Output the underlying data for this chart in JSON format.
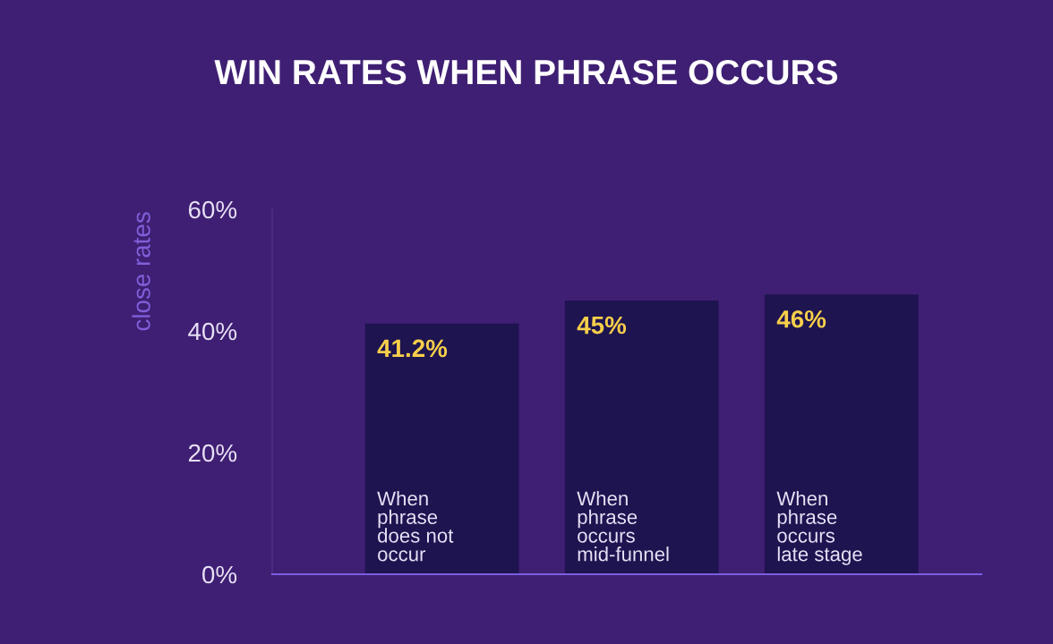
{
  "chart_data": {
    "type": "bar",
    "title": "WIN RATES WHEN PHRASE OCCURS",
    "ylabel": "close rates",
    "categories": [
      "When\nphrase\ndoes not\noccur",
      "When\nphrase\noccurs\nmid-funnel",
      "When\nphrase\noccurs\nlate stage"
    ],
    "values": [
      41.2,
      45,
      46
    ],
    "value_labels": [
      "41.2%",
      "45%",
      "46%"
    ],
    "color": "#1e1450",
    "ylim": [
      0,
      60
    ],
    "yticks": [
      {
        "value": 0,
        "label": "0%"
      },
      {
        "value": 20,
        "label": "20%"
      },
      {
        "value": 40,
        "label": "40%"
      },
      {
        "value": 60,
        "label": "60%"
      }
    ],
    "grid": false
  }
}
